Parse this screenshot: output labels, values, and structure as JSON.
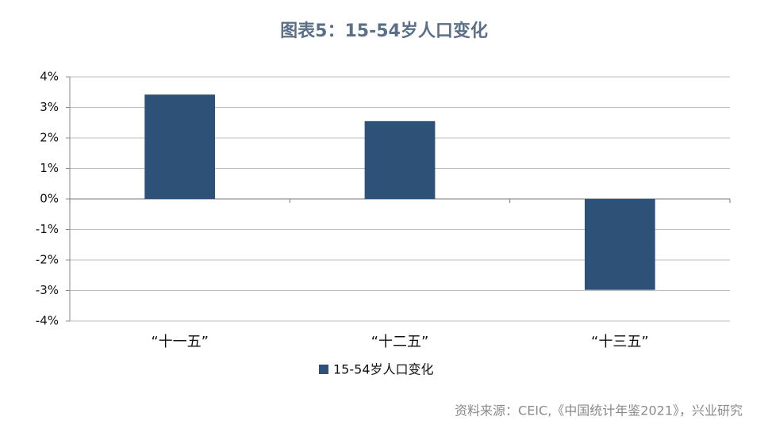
{
  "chart_data": {
    "type": "bar",
    "title": "图表5：15-54岁人口变化",
    "categories": [
      "“十一五”",
      "“十二五”",
      "“十三五”"
    ],
    "series": [
      {
        "name": "15-54岁人口变化",
        "color": "#2e5277",
        "values": [
          3.42,
          2.55,
          -2.98
        ]
      }
    ],
    "ylim": [
      -4,
      4
    ],
    "yticks": [
      {
        "value": -4,
        "label": "-4%"
      },
      {
        "value": -3,
        "label": "-3%"
      },
      {
        "value": -2,
        "label": "-2%"
      },
      {
        "value": -1,
        "label": "-1%"
      },
      {
        "value": 0,
        "label": "0%"
      },
      {
        "value": 1,
        "label": "1%"
      },
      {
        "value": 2,
        "label": "2%"
      },
      {
        "value": 3,
        "label": "3%"
      },
      {
        "value": 4,
        "label": "4%"
      }
    ],
    "grid": true,
    "legend": "bottom",
    "source": "资料来源：CEIC,《中国统计年鉴2021》，兴业研究"
  }
}
